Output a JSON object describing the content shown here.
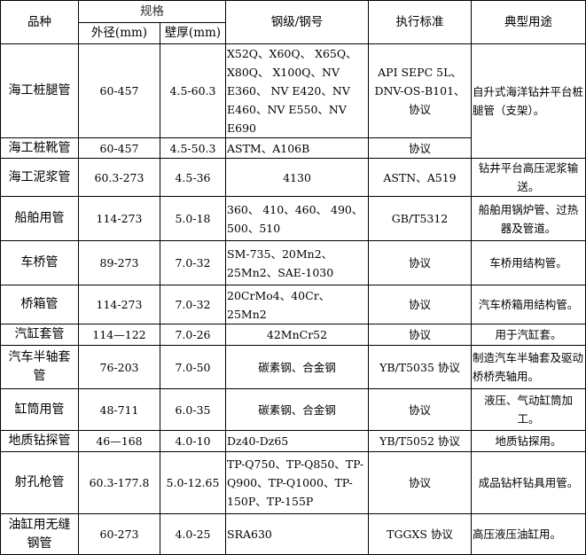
{
  "header": {
    "variety": "品种",
    "spec": "规格",
    "od": "外径(mm)",
    "wall": "壁厚(mm)",
    "grade": "钢级/钢号",
    "standard": "执行标准",
    "usage": "典型用途"
  },
  "rows": [
    {
      "name": "海工桩腿管",
      "od": "60-457",
      "wall": "4.5-60.3",
      "grade": "X52Q、X60Q、 X65Q、X80Q、 X100Q、NV E360、 NV E420、NV E460、NV E550、NV E690",
      "standard": "API SEPC 5L、DNV-OS-B101、协议",
      "usage": "自升式海洋钻井平台桩腿管（支架）。"
    },
    {
      "name": "海工桩靴管",
      "od": "60-457",
      "wall": "4.5-50.3",
      "grade": "ASTM、A106B",
      "standard": "协议"
    },
    {
      "name": "海工泥浆管",
      "od": "60.3-273",
      "wall": "4.5-36",
      "grade": "4130",
      "standard": "ASTN、A519",
      "usage": "钻井平台高压泥浆输送。"
    },
    {
      "name": "船舶用管",
      "od": "114-273",
      "wall": "5.0-18",
      "grade": "360、 410、460、 490、500、510",
      "standard": "GB/T5312",
      "usage": "船舶用锅炉管、过热器及管道。"
    },
    {
      "name": "车桥管",
      "od": "89-273",
      "wall": "7.0-32",
      "grade": "SM-735、20Mn2、25Mn2、SAE-1030",
      "standard": "协议",
      "usage": "车桥用结构管。"
    },
    {
      "name": "桥箱管",
      "od": "114-273",
      "wall": "7.0-32",
      "grade": "20CrMo4、40Cr、25Mn2",
      "standard": "协议",
      "usage": "汽车桥箱用结构管。"
    },
    {
      "name": "汽缸套管",
      "od": "114—122",
      "wall": "7.0-26",
      "grade": "42MnCr52",
      "standard": "协议",
      "usage": "用于汽缸套。"
    },
    {
      "name": "汽车半轴套管",
      "od": "76-203",
      "wall": "7.0-50",
      "grade": "碳素钢、合金钢",
      "standard": "YB/T5035 协议",
      "usage": "制造汽车半轴套及驱动桥桥壳轴用。"
    },
    {
      "name": "缸筒用管",
      "od": "48-711",
      "wall": "6.0-35",
      "grade": "碳素钢、合金钢",
      "standard": "协议",
      "usage": "液压、气动缸筒加工。"
    },
    {
      "name": "地质钻探管",
      "od": "46—168",
      "wall": "4.0-10",
      "grade": "Dz40-Dz65",
      "standard": "YB/T5052 协议",
      "usage": "地质钻探用。"
    },
    {
      "name": "射孔枪管",
      "od": "60.3-177.8",
      "wall": "5.0-12.65",
      "grade": "TP-Q750、TP-Q850、TP-Q900、TP-Q1000、TP-150P、TP-155P",
      "standard": "协议",
      "usage": "成品钻杆钻具用管。"
    },
    {
      "name": "油缸用无缝钢管",
      "od": "60-273",
      "wall": "4.0-25",
      "grade": "SRA630",
      "standard": "TGGXS 协议",
      "usage": "高压液压油缸用。"
    }
  ]
}
